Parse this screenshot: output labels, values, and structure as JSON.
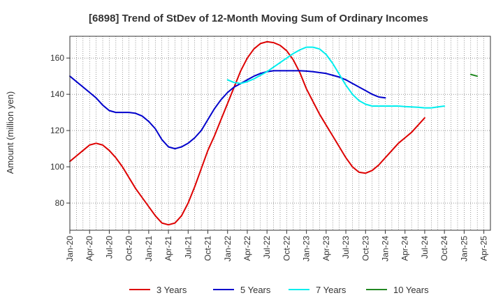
{
  "chart_data": {
    "type": "line",
    "title": "[6898]  Trend of StDev of 12-Month Moving Sum of Ordinary Incomes",
    "xlabel": "",
    "ylabel": "Amount (million yen)",
    "ylim": [
      65,
      172
    ],
    "yticks": [
      80,
      100,
      120,
      140,
      160
    ],
    "x_tick_labels": [
      "Jan-20",
      "Apr-20",
      "Jul-20",
      "Oct-20",
      "Jan-21",
      "Apr-21",
      "Jul-21",
      "Oct-21",
      "Jan-22",
      "Apr-22",
      "Jul-22",
      "Oct-22",
      "Jan-23",
      "Apr-23",
      "Jul-23",
      "Oct-23",
      "Jan-24",
      "Apr-24",
      "Jul-24",
      "Oct-24",
      "Jan-25",
      "Apr-25"
    ],
    "x_range_months": [
      0,
      64
    ],
    "grid": true,
    "legend_position": "bottom",
    "series": [
      {
        "name": "3 Years",
        "color": "#dd0000",
        "start_month": 0,
        "values": [
          103,
          106,
          109,
          112,
          113,
          112,
          109,
          105,
          100,
          94,
          88,
          83,
          78,
          73,
          69,
          68,
          69,
          73,
          80,
          89,
          99,
          109,
          117,
          126,
          135,
          144,
          153,
          160,
          165,
          168,
          169,
          168.5,
          167,
          164,
          159,
          152,
          143,
          136,
          129,
          123,
          117,
          111,
          105,
          100,
          97,
          96.5,
          98,
          101,
          105,
          109,
          113,
          116,
          119,
          123,
          127
        ]
      },
      {
        "name": "5 Years",
        "color": "#0000cc",
        "start_month": 0,
        "values": [
          150,
          147,
          144,
          141,
          138,
          134,
          131,
          130,
          130,
          130,
          129.5,
          128,
          125,
          121,
          115,
          111,
          110,
          111,
          113,
          116,
          120,
          126,
          132,
          137,
          141,
          144,
          146,
          148,
          150,
          151.5,
          152.5,
          153,
          153,
          153,
          153,
          153,
          152.8,
          152.5,
          152,
          151.5,
          150.5,
          149.5,
          148,
          146,
          144,
          142,
          140,
          138.5,
          138
        ]
      },
      {
        "name": "7 Years",
        "color": "#00eeee",
        "start_month": 24,
        "values": [
          148,
          146.5,
          146,
          147,
          148.5,
          150.5,
          152.5,
          155,
          157.5,
          160,
          162.5,
          164.5,
          166,
          166,
          165,
          162,
          157,
          151,
          145,
          140,
          136.5,
          134.5,
          133.5,
          133.5,
          133.5,
          133.5,
          133.5,
          133.2,
          133,
          132.8,
          132.5,
          132.5,
          133,
          133.5
        ]
      },
      {
        "name": "10 Years",
        "color": "#228822",
        "start_month": 61,
        "values": [
          151,
          150
        ]
      }
    ]
  }
}
